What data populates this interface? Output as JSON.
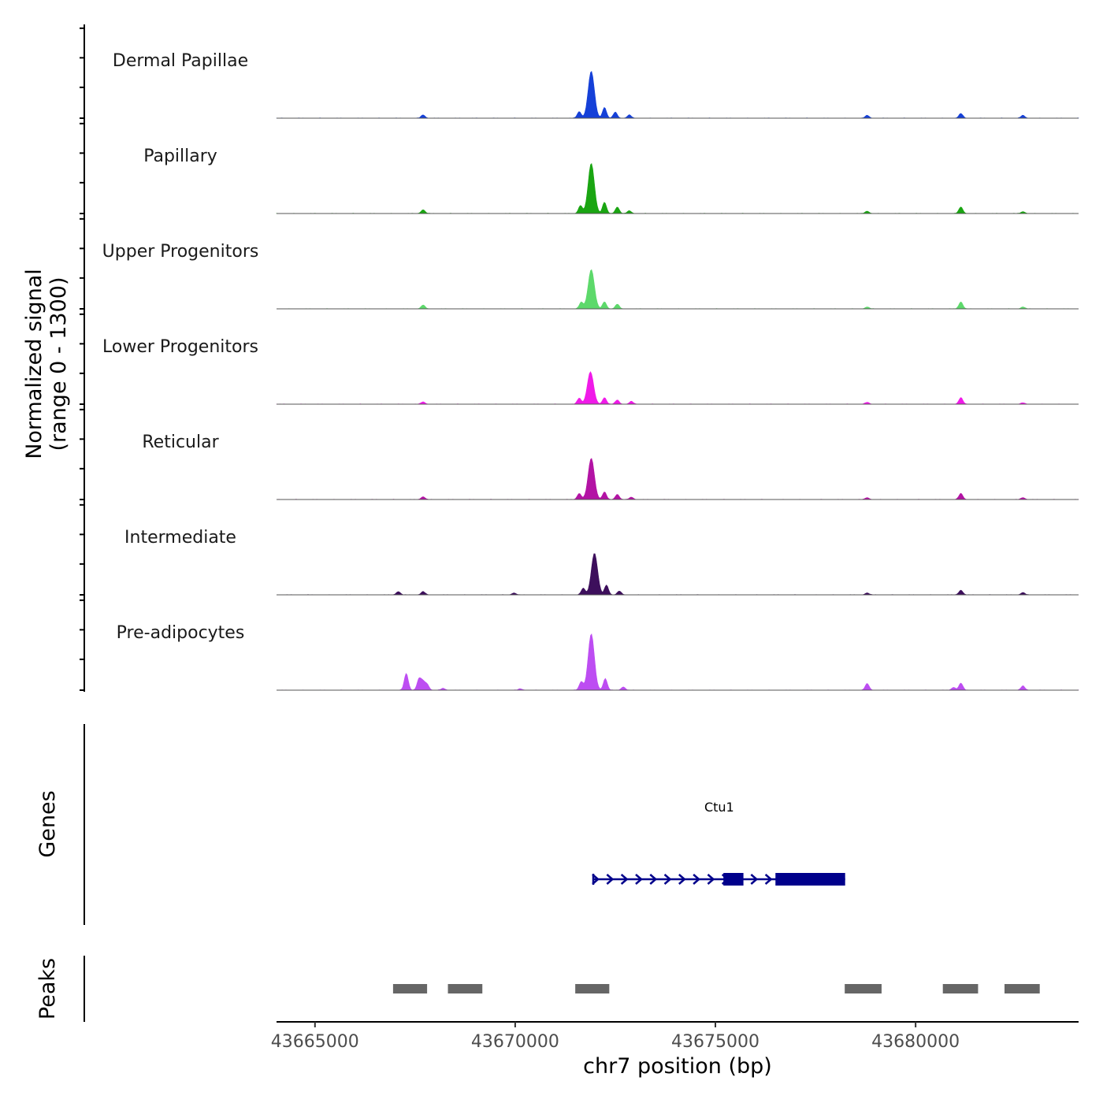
{
  "chart_data": {
    "type": "area",
    "title": "",
    "ylabel_line1": "Normalized signal",
    "ylabel_line2": "(range 0 - 1300)",
    "yrange": [
      0,
      1300
    ],
    "xlabel": "chr7 position (bp)",
    "xlim": [
      43664040,
      43684070
    ],
    "x_ticks": [
      43665000,
      43670000,
      43675000,
      43680000
    ],
    "x_tick_labels": [
      "43665000",
      "43670000",
      "43675000",
      "43680000"
    ],
    "tracks": [
      {
        "name": "Dermal Papillae",
        "color": "#1540d8",
        "peaks": [
          [
            43667700,
            70
          ],
          [
            43671900,
            1000
          ],
          [
            43671600,
            140
          ],
          [
            43672230,
            230
          ],
          [
            43672500,
            130
          ],
          [
            43672850,
            70
          ],
          [
            43678790,
            60
          ],
          [
            43681130,
            100
          ],
          [
            43682680,
            60
          ]
        ]
      },
      {
        "name": "Papillary",
        "color": "#1aa512",
        "peaks": [
          [
            43667700,
            80
          ],
          [
            43671900,
            1070
          ],
          [
            43671630,
            170
          ],
          [
            43672230,
            240
          ],
          [
            43672550,
            140
          ],
          [
            43672850,
            60
          ],
          [
            43678790,
            50
          ],
          [
            43681130,
            140
          ],
          [
            43682680,
            40
          ]
        ]
      },
      {
        "name": "Upper Progenitors",
        "color": "#5dd96b",
        "peaks": [
          [
            43667700,
            80
          ],
          [
            43671900,
            840
          ],
          [
            43671650,
            140
          ],
          [
            43672230,
            150
          ],
          [
            43672550,
            100
          ],
          [
            43678790,
            40
          ],
          [
            43681130,
            150
          ],
          [
            43682680,
            40
          ]
        ]
      },
      {
        "name": "Lower Progenitors",
        "color": "#f01ae8",
        "peaks": [
          [
            43667700,
            50
          ],
          [
            43671880,
            690
          ],
          [
            43671600,
            130
          ],
          [
            43672230,
            140
          ],
          [
            43672550,
            90
          ],
          [
            43672900,
            60
          ],
          [
            43678790,
            40
          ],
          [
            43681130,
            140
          ],
          [
            43682680,
            30
          ]
        ]
      },
      {
        "name": "Reticular",
        "color": "#b313a4",
        "peaks": [
          [
            43667700,
            60
          ],
          [
            43671900,
            880
          ],
          [
            43671600,
            130
          ],
          [
            43672230,
            160
          ],
          [
            43672550,
            110
          ],
          [
            43672900,
            50
          ],
          [
            43678790,
            40
          ],
          [
            43681130,
            130
          ],
          [
            43682680,
            40
          ]
        ]
      },
      {
        "name": "Intermediate",
        "color": "#3d0f5c",
        "peaks": [
          [
            43667080,
            70
          ],
          [
            43667700,
            70
          ],
          [
            43671980,
            890
          ],
          [
            43671700,
            140
          ],
          [
            43672280,
            210
          ],
          [
            43672600,
            80
          ],
          [
            43669970,
            40
          ],
          [
            43678790,
            40
          ],
          [
            43681130,
            100
          ],
          [
            43682680,
            50
          ]
        ]
      },
      {
        "name": "Pre-adipocytes",
        "color": "#bd4df2",
        "peaks": [
          [
            43667280,
            360
          ],
          [
            43667600,
            240
          ],
          [
            43667800,
            120
          ],
          [
            43667700,
            170
          ],
          [
            43668200,
            40
          ],
          [
            43671900,
            1200
          ],
          [
            43671650,
            180
          ],
          [
            43672250,
            250
          ],
          [
            43672700,
            70
          ],
          [
            43670130,
            30
          ],
          [
            43678790,
            140
          ],
          [
            43681130,
            150
          ],
          [
            43680950,
            60
          ],
          [
            43682680,
            90
          ]
        ]
      }
    ],
    "genes_label": "Genes",
    "genes": [
      {
        "name": "Ctu1",
        "strand": "+",
        "start": 43671950,
        "end": 43678240,
        "exons": [
          [
            43675200,
            43675700
          ],
          [
            43676500,
            43678240
          ]
        ],
        "color": "#00008b"
      }
    ],
    "peaks_label": "Peaks",
    "peak_color": "#666666",
    "peak_regions": [
      [
        43666950,
        43667800
      ],
      [
        43668320,
        43669180
      ],
      [
        43671500,
        43672350
      ],
      [
        43678230,
        43679150
      ],
      [
        43680680,
        43681560
      ],
      [
        43682220,
        43683100
      ]
    ]
  }
}
